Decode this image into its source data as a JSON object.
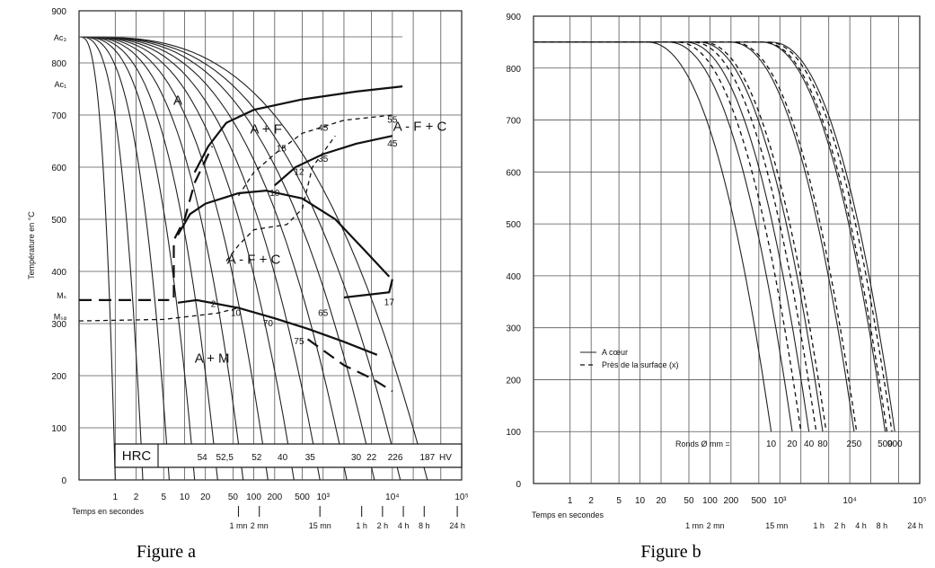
{
  "chart_data": [
    {
      "type": "line",
      "figure_caption": "Figure a",
      "ylabel": "Température en °C",
      "xlabel": "Temps en secondes",
      "ylim": [
        0,
        900
      ],
      "xscale": "log",
      "xlim": [
        0.3,
        100000
      ],
      "y_ticks": [
        0,
        100,
        200,
        300,
        400,
        500,
        600,
        700,
        800,
        900
      ],
      "y_special_labels": [
        {
          "label": "Ac₃",
          "y": 850
        },
        {
          "label": "Ac₁",
          "y": 760
        },
        {
          "label": "Mₛ",
          "y": 355
        },
        {
          "label": "Mₛₐ",
          "y": 315
        }
      ],
      "x_ticks": [
        {
          "label": "1",
          "x": 1
        },
        {
          "label": "2",
          "x": 2
        },
        {
          "label": "5",
          "x": 5
        },
        {
          "label": "10",
          "x": 10
        },
        {
          "label": "20",
          "x": 20
        },
        {
          "label": "50",
          "x": 50
        },
        {
          "label": "100",
          "x": 100
        },
        {
          "label": "200",
          "x": 200
        },
        {
          "label": "500",
          "x": 500
        },
        {
          "label": "10³",
          "x": 1000
        },
        {
          "label": "10⁴",
          "x": 10000
        },
        {
          "label": "10⁵",
          "x": 100000
        }
      ],
      "time_labels": [
        {
          "label": "1 mn",
          "x": 60
        },
        {
          "label": "2 mn",
          "x": 120
        },
        {
          "label": "15 mn",
          "x": 900
        },
        {
          "label": "1 h",
          "x": 3600
        },
        {
          "label": "2 h",
          "x": 7200
        },
        {
          "label": "4 h",
          "x": 14400
        },
        {
          "label": "8 h",
          "x": 28800
        },
        {
          "label": "24 h",
          "x": 86400
        }
      ],
      "regions": [
        {
          "label": "A",
          "x": 8,
          "y": 720
        },
        {
          "label": "A + F",
          "x": 150,
          "y": 665
        },
        {
          "label": "A - F + C",
          "x": 25000,
          "y": 670
        },
        {
          "label": "A - F + C",
          "x": 100,
          "y": 415
        },
        {
          "label": "A + M",
          "x": 25,
          "y": 225
        }
      ],
      "hardness_labels": [
        {
          "label": "15",
          "x": 250,
          "y": 630
        },
        {
          "label": "12",
          "x": 450,
          "y": 585
        },
        {
          "label": "10",
          "x": 200,
          "y": 545
        },
        {
          "label": "45",
          "x": 1000,
          "y": 670
        },
        {
          "label": "35",
          "x": 1000,
          "y": 610
        },
        {
          "label": "55",
          "x": 10000,
          "y": 685
        },
        {
          "label": "45",
          "x": 10000,
          "y": 640
        },
        {
          "label": "2",
          "x": 26,
          "y": 332
        },
        {
          "label": "10",
          "x": 55,
          "y": 315
        },
        {
          "label": "70",
          "x": 160,
          "y": 295
        },
        {
          "label": "75",
          "x": 450,
          "y": 260
        },
        {
          "label": "65",
          "x": 1000,
          "y": 315
        },
        {
          "label": "17",
          "x": 9000,
          "y": 335
        }
      ],
      "hardness_scale": {
        "hrc_label": "HRC",
        "hv_label": "HV",
        "values": [
          {
            "label": "54",
            "x": 18
          },
          {
            "label": "52,5",
            "x": 38
          },
          {
            "label": "52",
            "x": 110
          },
          {
            "label": "40",
            "x": 260
          },
          {
            "label": "35",
            "x": 650
          },
          {
            "label": "30",
            "x": 3000
          },
          {
            "label": "22",
            "x": 5000
          },
          {
            "label": "226",
            "x": 11000
          },
          {
            "label": "187",
            "x": 32000
          }
        ]
      },
      "cooling_curves_t_end": [
        1.0,
        2.5,
        6,
        14,
        30,
        70,
        160,
        380,
        900,
        2200,
        5500,
        13000,
        32000
      ]
    },
    {
      "type": "line",
      "figure_caption": "Figure b",
      "xlabel": "Temps en secondes",
      "ylim": [
        0,
        900
      ],
      "xscale": "log",
      "xlim": [
        0.3,
        100000
      ],
      "y_ticks": [
        0,
        100,
        200,
        300,
        400,
        500,
        600,
        700,
        800,
        900
      ],
      "x_ticks": [
        {
          "label": "1",
          "x": 1
        },
        {
          "label": "2",
          "x": 2
        },
        {
          "label": "5",
          "x": 5
        },
        {
          "label": "10",
          "x": 10
        },
        {
          "label": "20",
          "x": 20
        },
        {
          "label": "50",
          "x": 50
        },
        {
          "label": "100",
          "x": 100
        },
        {
          "label": "200",
          "x": 200
        },
        {
          "label": "500",
          "x": 500
        },
        {
          "label": "10³",
          "x": 1000
        },
        {
          "label": "10⁴",
          "x": 10000
        },
        {
          "label": "10⁵",
          "x": 100000
        }
      ],
      "time_labels": [
        {
          "label": "1 mn",
          "x": 60
        },
        {
          "label": "2 mn",
          "x": 120
        },
        {
          "label": "15 mn",
          "x": 900
        },
        {
          "label": "1 h",
          "x": 3600
        },
        {
          "label": "2 h",
          "x": 7200
        },
        {
          "label": "4 h",
          "x": 14400
        },
        {
          "label": "8 h",
          "x": 28800
        },
        {
          "label": "24 h",
          "x": 86400
        }
      ],
      "legend": {
        "position": "bottom-left",
        "entries": [
          {
            "label": "A cœur",
            "style": "solid"
          },
          {
            "label": "Près de la surface (x)",
            "style": "dashed"
          }
        ]
      },
      "rounds_label": "Ronds Ø mm =",
      "series": [
        {
          "name": "10",
          "style": "solid",
          "t100": 750
        },
        {
          "name": "20",
          "style": "solid",
          "t100": 1500
        },
        {
          "name": "20",
          "style": "dashed",
          "t100": 2000
        },
        {
          "name": "40",
          "style": "solid",
          "t100": 2600
        },
        {
          "name": "40",
          "style": "dashed",
          "t100": 3300
        },
        {
          "name": "80",
          "style": "solid",
          "t100": 4100
        },
        {
          "name": "80",
          "style": "dashed",
          "t100": 4600
        },
        {
          "name": "250",
          "style": "solid",
          "t100": 11500
        },
        {
          "name": "250",
          "style": "dashed",
          "t100": 12500
        },
        {
          "name": "500",
          "style": "solid",
          "t100": 32000
        },
        {
          "name": "500",
          "style": "dashed",
          "t100": 34000
        },
        {
          "name": "900",
          "style": "solid",
          "t100": 44000
        },
        {
          "name": "900",
          "style": "dashed",
          "t100": 40000
        }
      ]
    }
  ]
}
